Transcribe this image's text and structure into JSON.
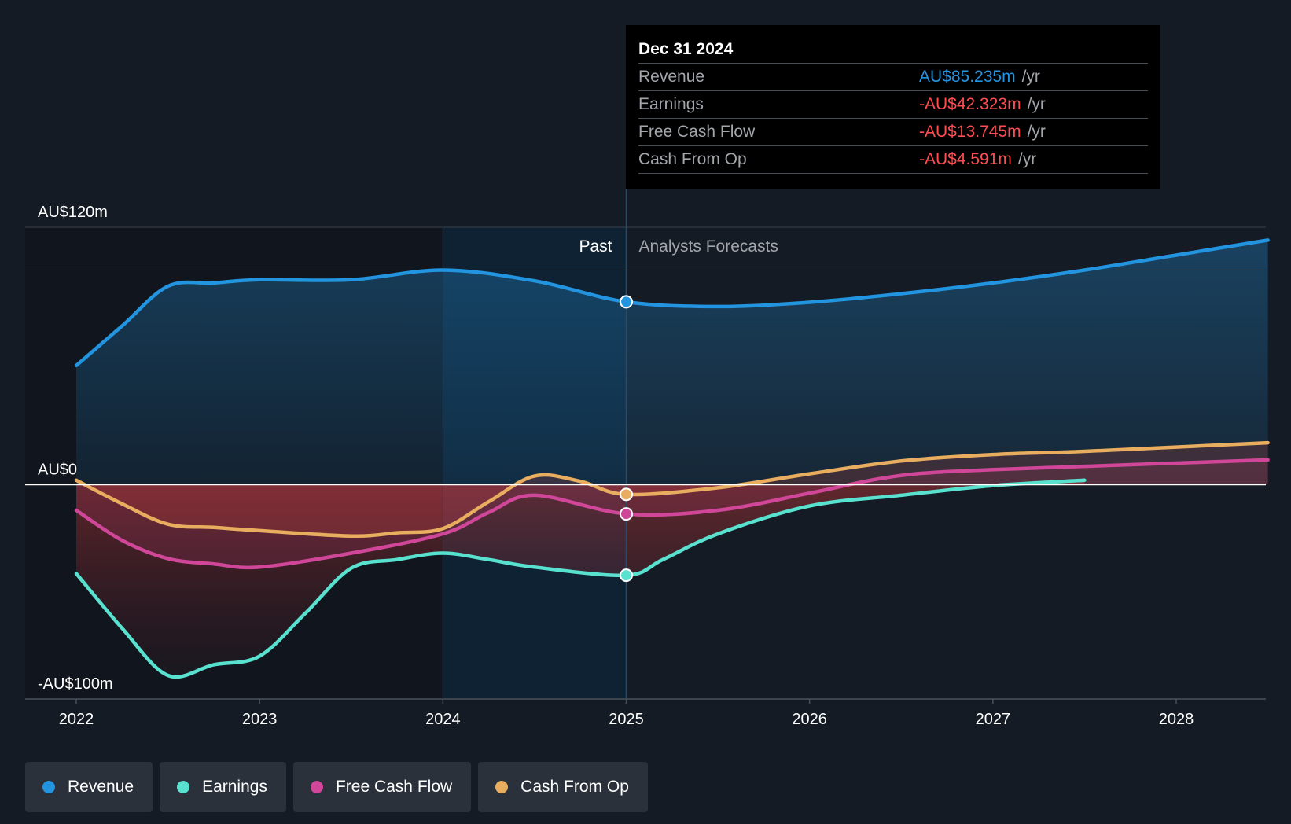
{
  "chart_data": {
    "type": "line",
    "x_domain": [
      2022,
      2028.5
    ],
    "ylim": [
      -100,
      120
    ],
    "y_ticks": [
      {
        "value": 120,
        "label": "AU$120m"
      },
      {
        "value": 0,
        "label": "AU$0"
      },
      {
        "value": -100,
        "label": "-AU$100m"
      }
    ],
    "x_ticks": [
      {
        "value": 2022,
        "label": "2022"
      },
      {
        "value": 2023,
        "label": "2023"
      },
      {
        "value": 2024,
        "label": "2024"
      },
      {
        "value": 2025,
        "label": "2025"
      },
      {
        "value": 2026,
        "label": "2026"
      },
      {
        "value": 2027,
        "label": "2027"
      },
      {
        "value": 2028,
        "label": "2028"
      }
    ],
    "past_label": "Past",
    "forecast_label": "Analysts Forecasts",
    "divider_x": 2025.0,
    "highlight_start_x": 2024.0,
    "series": [
      {
        "name": "Revenue",
        "color": "#2394df",
        "fill": true,
        "points": [
          [
            2022.0,
            55.5
          ],
          [
            2022.25,
            74
          ],
          [
            2022.5,
            92.5
          ],
          [
            2022.75,
            94
          ],
          [
            2023.0,
            95.5
          ],
          [
            2023.5,
            95.5
          ],
          [
            2024.0,
            100
          ],
          [
            2024.5,
            95
          ],
          [
            2025.0,
            85.2
          ],
          [
            2025.5,
            83
          ],
          [
            2026.0,
            85
          ],
          [
            2026.5,
            89
          ],
          [
            2027.0,
            94
          ],
          [
            2027.5,
            100
          ],
          [
            2028.0,
            107
          ],
          [
            2028.5,
            114
          ]
        ]
      },
      {
        "name": "Earnings",
        "color": "#58e1cf",
        "fill": true,
        "points": [
          [
            2022.0,
            -41.5
          ],
          [
            2022.25,
            -67
          ],
          [
            2022.5,
            -89
          ],
          [
            2022.75,
            -84
          ],
          [
            2023.0,
            -80
          ],
          [
            2023.25,
            -60
          ],
          [
            2023.5,
            -39
          ],
          [
            2023.75,
            -35
          ],
          [
            2024.0,
            -32
          ],
          [
            2024.25,
            -35
          ],
          [
            2024.5,
            -38.5
          ],
          [
            2025.0,
            -42.3
          ],
          [
            2025.2,
            -35
          ],
          [
            2025.5,
            -23
          ],
          [
            2026.0,
            -10
          ],
          [
            2026.5,
            -5
          ],
          [
            2027.0,
            -0.5
          ],
          [
            2027.5,
            2
          ]
        ]
      },
      {
        "name": "Free Cash Flow",
        "color": "#d0479a",
        "fill": true,
        "points": [
          [
            2022.0,
            -12
          ],
          [
            2022.25,
            -26
          ],
          [
            2022.5,
            -34.5
          ],
          [
            2022.75,
            -37
          ],
          [
            2023.0,
            -38.5
          ],
          [
            2023.5,
            -32
          ],
          [
            2024.0,
            -23
          ],
          [
            2024.25,
            -13
          ],
          [
            2024.5,
            -5
          ],
          [
            2025.0,
            -13.7
          ],
          [
            2025.5,
            -12
          ],
          [
            2026.0,
            -4
          ],
          [
            2026.4,
            3
          ],
          [
            2026.75,
            6
          ],
          [
            2027.5,
            8.5
          ],
          [
            2028.5,
            11.5
          ]
        ]
      },
      {
        "name": "Cash From Op",
        "color": "#e8ad5e",
        "fill": true,
        "points": [
          [
            2022.0,
            2
          ],
          [
            2022.25,
            -9
          ],
          [
            2022.5,
            -18.5
          ],
          [
            2022.75,
            -20
          ],
          [
            2023.0,
            -21.5
          ],
          [
            2023.5,
            -24
          ],
          [
            2023.75,
            -22.5
          ],
          [
            2024.0,
            -20.5
          ],
          [
            2024.25,
            -8
          ],
          [
            2024.5,
            4
          ],
          [
            2024.75,
            1.5
          ],
          [
            2025.0,
            -4.6
          ],
          [
            2025.5,
            -1.5
          ],
          [
            2026.0,
            5
          ],
          [
            2026.5,
            11
          ],
          [
            2027.0,
            14
          ],
          [
            2027.5,
            15.5
          ],
          [
            2028.5,
            19.5
          ]
        ]
      }
    ]
  },
  "tooltip": {
    "date": "Dec 31 2024",
    "unit": "/yr",
    "rows": [
      {
        "name": "Revenue",
        "value": "AU$85.235m",
        "color": "#2394df"
      },
      {
        "name": "Earnings",
        "value": "-AU$42.323m",
        "color": "#ff4d52"
      },
      {
        "name": "Free Cash Flow",
        "value": "-AU$13.745m",
        "color": "#ff4d52"
      },
      {
        "name": "Cash From Op",
        "value": "-AU$4.591m",
        "color": "#ff4d52"
      }
    ]
  },
  "legend": [
    {
      "label": "Revenue",
      "color": "#2394df"
    },
    {
      "label": "Earnings",
      "color": "#58e1cf"
    },
    {
      "label": "Free Cash Flow",
      "color": "#d0479a"
    },
    {
      "label": "Cash From Op",
      "color": "#e8ad5e"
    }
  ]
}
